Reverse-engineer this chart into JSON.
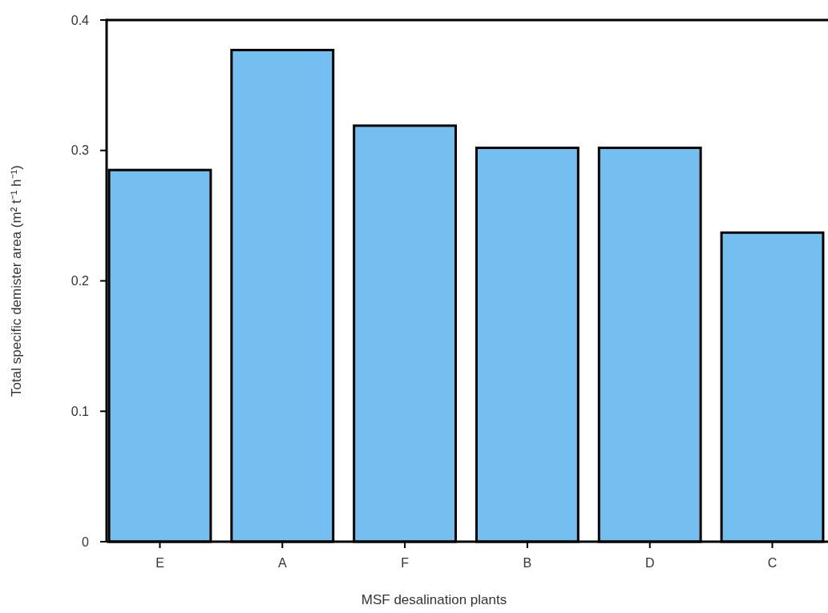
{
  "chart_data": {
    "type": "bar",
    "xlabel": "MSF desalination plants",
    "ylabel": "Total specific demister area (m² t⁻¹ h⁻¹)",
    "categories": [
      "E",
      "A",
      "F",
      "B",
      "D",
      "C"
    ],
    "values": [
      0.285,
      0.377,
      0.319,
      0.302,
      0.302,
      0.237
    ],
    "color": "#74bfef",
    "ylim": [
      0,
      0.4
    ],
    "yticks": [
      0,
      0.1,
      0.2,
      0.3,
      0.4
    ],
    "grid": false
  }
}
